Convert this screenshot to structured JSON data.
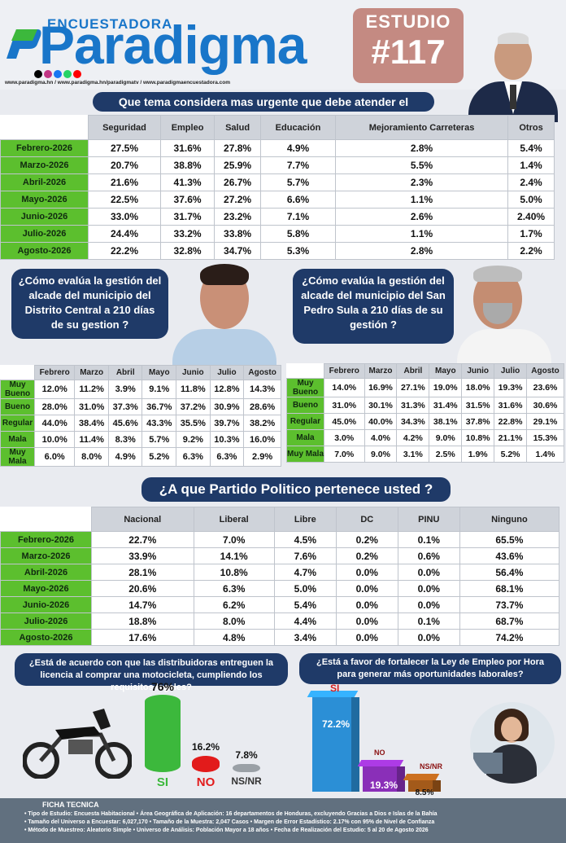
{
  "header": {
    "brand_top": "ENCUESTADORA",
    "brand_main": "Paradigma",
    "urls": "www.paradigma.hn / www.paradigma.hn/paradigmatv / www.paradigmaencuestadora.com",
    "study_label": "ESTUDIO",
    "study_number": "#117"
  },
  "q1": {
    "question": "Que tema considera mas urgente que debe atender el gobierno",
    "columns": [
      "Seguridad",
      "Empleo",
      "Salud",
      "Educación",
      "Mejoramiento Carreteras",
      "Otros"
    ],
    "rows": [
      {
        "label": "Febrero-2026",
        "values": [
          "27.5%",
          "31.6%",
          "27.8%",
          "4.9%",
          "2.8%",
          "5.4%"
        ]
      },
      {
        "label": "Marzo-2026",
        "values": [
          "20.7%",
          "38.8%",
          "25.9%",
          "7.7%",
          "5.5%",
          "1.4%"
        ]
      },
      {
        "label": "Abril-2026",
        "values": [
          "21.6%",
          "41.3%",
          "26.7%",
          "5.7%",
          "2.3%",
          "2.4%"
        ]
      },
      {
        "label": "Mayo-2026",
        "values": [
          "22.5%",
          "37.6%",
          "27.2%",
          "6.6%",
          "1.1%",
          "5.0%"
        ]
      },
      {
        "label": "Junio-2026",
        "values": [
          "33.0%",
          "31.7%",
          "23.2%",
          "7.1%",
          "2.6%",
          "2.40%"
        ]
      },
      {
        "label": "Julio-2026",
        "values": [
          "24.4%",
          "33.2%",
          "33.8%",
          "5.8%",
          "1.1%",
          "1.7%"
        ]
      },
      {
        "label": "Agosto-2026",
        "values": [
          "22.2%",
          "32.8%",
          "34.7%",
          "5.3%",
          "2.8%",
          "2.2%"
        ]
      }
    ]
  },
  "q2": {
    "question": "¿Cómo evalúa la gestión del alcade del municipio del Distrito Central a 210 días de su gestion ?",
    "columns": [
      "Febrero",
      "Marzo",
      "Abril",
      "Mayo",
      "Junio",
      "Julio",
      "Agosto"
    ],
    "rows": [
      {
        "label": "Muy Bueno",
        "values": [
          "12.0%",
          "11.2%",
          "3.9%",
          "9.1%",
          "11.8%",
          "12.8%",
          "14.3%"
        ]
      },
      {
        "label": "Bueno",
        "values": [
          "28.0%",
          "31.0%",
          "37.3%",
          "36.7%",
          "37.2%",
          "30.9%",
          "28.6%"
        ]
      },
      {
        "label": "Regular",
        "values": [
          "44.0%",
          "38.4%",
          "45.6%",
          "43.3%",
          "35.5%",
          "39.7%",
          "38.2%"
        ]
      },
      {
        "label": "Mala",
        "values": [
          "10.0%",
          "11.4%",
          "8.3%",
          "5.7%",
          "9.2%",
          "10.3%",
          "16.0%"
        ]
      },
      {
        "label": "Muy Mala",
        "values": [
          "6.0%",
          "8.0%",
          "4.9%",
          "5.2%",
          "6.3%",
          "6.3%",
          "2.9%"
        ]
      }
    ]
  },
  "q3": {
    "question": "¿Cómo evalúa la gestión del alcade del municipio del San Pedro Sula a 210 días de su gestión ?",
    "columns": [
      "Febrero",
      "Marzo",
      "Abril",
      "Mayo",
      "Junio",
      "Julio",
      "Agosto"
    ],
    "rows": [
      {
        "label": "Muy Bueno",
        "values": [
          "14.0%",
          "16.9%",
          "27.1%",
          "19.0%",
          "18.0%",
          "19.3%",
          "23.6%"
        ]
      },
      {
        "label": "Bueno",
        "values": [
          "31.0%",
          "30.1%",
          "31.3%",
          "31.4%",
          "31.5%",
          "31.6%",
          "30.6%"
        ]
      },
      {
        "label": "Regular",
        "values": [
          "45.0%",
          "40.0%",
          "34.3%",
          "38.1%",
          "37.8%",
          "22.8%",
          "29.1%"
        ]
      },
      {
        "label": "Mala",
        "values": [
          "3.0%",
          "4.0%",
          "4.2%",
          "9.0%",
          "10.8%",
          "21.1%",
          "15.3%"
        ]
      },
      {
        "label": "Muy Mala",
        "values": [
          "7.0%",
          "9.0%",
          "3.1%",
          "2.5%",
          "1.9%",
          "5.2%",
          "1.4%"
        ]
      }
    ]
  },
  "q4": {
    "question": "¿A que Partido Politico pertenece usted ?",
    "columns": [
      "Nacional",
      "Liberal",
      "Libre",
      "DC",
      "PINU",
      "Ninguno"
    ],
    "rows": [
      {
        "label": "Febrero-2026",
        "values": [
          "22.7%",
          "7.0%",
          "4.5%",
          "0.2%",
          "0.1%",
          "65.5%"
        ]
      },
      {
        "label": "Marzo-2026",
        "values": [
          "33.9%",
          "14.1%",
          "7.6%",
          "0.2%",
          "0.6%",
          "43.6%"
        ]
      },
      {
        "label": "Abril-2026",
        "values": [
          "28.1%",
          "10.8%",
          "4.7%",
          "0.0%",
          "0.0%",
          "56.4%"
        ]
      },
      {
        "label": "Mayo-2026",
        "values": [
          "20.6%",
          "6.3%",
          "5.0%",
          "0.0%",
          "0.0%",
          "68.1%"
        ]
      },
      {
        "label": "Junio-2026",
        "values": [
          "14.7%",
          "6.2%",
          "5.4%",
          "0.0%",
          "0.0%",
          "73.7%"
        ]
      },
      {
        "label": "Julio-2026",
        "values": [
          "18.8%",
          "8.0%",
          "4.4%",
          "0.0%",
          "0.1%",
          "68.7%"
        ]
      },
      {
        "label": "Agosto-2026",
        "values": [
          "17.6%",
          "4.8%",
          "3.4%",
          "0.0%",
          "0.0%",
          "74.2%"
        ]
      }
    ]
  },
  "q5": {
    "question": "¿Está de acuerdo con que las distribuidoras entreguen la licencia al comprar una motocicleta, cumpliendo los requisitos legales?",
    "bars": [
      {
        "label": "SI",
        "value": "76%",
        "fraction": 0.76,
        "color": "#3cb83c"
      },
      {
        "label": "NO",
        "value": "16.2%",
        "fraction": 0.162,
        "color": "#e21b1b"
      },
      {
        "label": "NS/NR",
        "value": "7.8%",
        "fraction": 0.078,
        "color": "#9aa0a6"
      }
    ]
  },
  "q6": {
    "question": "¿Está a favor de fortalecer la Ley de Empleo por Hora para generar más oportunidades laborales?",
    "bars": [
      {
        "label": "SI",
        "value": "72.2%",
        "fraction": 0.722,
        "color": "#2b8fd6"
      },
      {
        "label": "NO",
        "value": "19.3%",
        "fraction": 0.193,
        "color": "#8a2fb8"
      },
      {
        "label": "NS/NR",
        "value": "8.5%",
        "fraction": 0.085,
        "color": "#a35a1a"
      }
    ]
  },
  "ficha": {
    "title": "FICHA TECNICA",
    "lines": [
      "• Tipo de Estudio: Encuesta Habitacional • Área Geográfica de Aplicación: 16 departamentos de Honduras, excluyendo Gracias a Dios e  Islas de la Bahía",
      "• Tamaño del Universo a Encuestar: 6,027,170 • Tamaño de la Muestra: 2,047 Casos • Margen de Error Estadístico: 2.17% con 95% de Nivel de Confianza",
      "• Método de Muestreo: Aleatorio Simple • Universo de Análisis: Población Mayor a 18 años • Fecha de Realización del Estudio: 5 al 20 de Agosto 2026"
    ]
  }
}
